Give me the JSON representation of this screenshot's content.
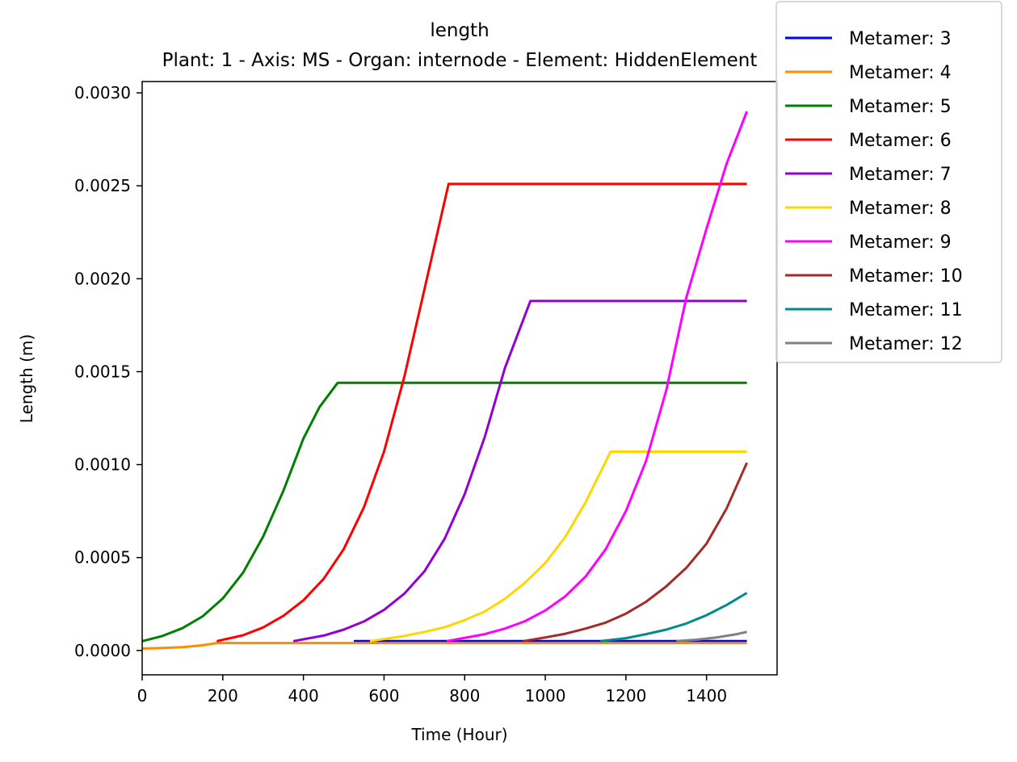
{
  "chart_data": {
    "type": "line",
    "title": "length",
    "subtitle": "Plant: 1 - Axis: MS - Organ: internode - Element: HiddenElement",
    "xlabel": "Time (Hour)",
    "ylabel": "Length (m)",
    "xlim": [
      0,
      1575
    ],
    "ylim": [
      -0.000131,
      0.003061
    ],
    "x_ticks": [
      0,
      200,
      400,
      600,
      800,
      1000,
      1200,
      1400
    ],
    "x_tick_labels": [
      "0",
      "200",
      "400",
      "600",
      "800",
      "1000",
      "1200",
      "1400"
    ],
    "y_ticks": [
      0,
      0.0005,
      0.001,
      0.0015,
      0.002,
      0.0025,
      0.003
    ],
    "y_tick_labels": [
      "0.0000",
      "0.0005",
      "0.0010",
      "0.0015",
      "0.0020",
      "0.0025",
      "0.0030"
    ],
    "grid": false,
    "legend_position": "outside-top-right",
    "series": [
      {
        "name": "Metamer: 3",
        "color": "#0000ff",
        "points": [
          [
            525,
            5e-05
          ],
          [
            1500,
            5e-05
          ]
        ]
      },
      {
        "name": "Metamer: 4",
        "color": "#ff8c00",
        "points": [
          [
            0,
            1e-05
          ],
          [
            50,
            1.3e-05
          ],
          [
            100,
            1.8e-05
          ],
          [
            150,
            2.8e-05
          ],
          [
            185,
            4e-05
          ],
          [
            1500,
            4e-05
          ]
        ]
      },
      {
        "name": "Metamer: 5",
        "color": "#008000",
        "points": [
          [
            0,
            5e-05
          ],
          [
            50,
            7.8e-05
          ],
          [
            100,
            0.00012
          ],
          [
            150,
            0.000184
          ],
          [
            200,
            0.00028
          ],
          [
            250,
            0.000418
          ],
          [
            300,
            0.000612
          ],
          [
            350,
            0.000858
          ],
          [
            400,
            0.00114
          ],
          [
            440,
            0.00131
          ],
          [
            485,
            0.00144
          ],
          [
            1500,
            0.00144
          ]
        ]
      },
      {
        "name": "Metamer: 6",
        "color": "#ff0000",
        "points": [
          [
            185,
            5e-05
          ],
          [
            250,
            8.2e-05
          ],
          [
            300,
            0.000124
          ],
          [
            350,
            0.000186
          ],
          [
            400,
            0.00027
          ],
          [
            450,
            0.000385
          ],
          [
            500,
            0.000545
          ],
          [
            550,
            0.00077
          ],
          [
            600,
            0.00107
          ],
          [
            650,
            0.00147
          ],
          [
            700,
            0.00194
          ],
          [
            760,
            0.00251
          ],
          [
            1500,
            0.00251
          ]
        ]
      },
      {
        "name": "Metamer: 7",
        "color": "#9400d3",
        "points": [
          [
            375,
            5e-05
          ],
          [
            450,
            8e-05
          ],
          [
            500,
            0.000112
          ],
          [
            550,
            0.000156
          ],
          [
            600,
            0.000218
          ],
          [
            650,
            0.000305
          ],
          [
            700,
            0.000425
          ],
          [
            750,
            0.0006
          ],
          [
            800,
            0.00084
          ],
          [
            850,
            0.00115
          ],
          [
            900,
            0.00152
          ],
          [
            963,
            0.00188
          ],
          [
            1500,
            0.00188
          ]
        ]
      },
      {
        "name": "Metamer: 8",
        "color": "#ffd700",
        "points": [
          [
            565,
            5e-05
          ],
          [
            650,
            7.8e-05
          ],
          [
            700,
            0.0001
          ],
          [
            750,
            0.000125
          ],
          [
            800,
            0.000163
          ],
          [
            850,
            0.00021
          ],
          [
            900,
            0.000278
          ],
          [
            950,
            0.000365
          ],
          [
            1000,
            0.00047
          ],
          [
            1050,
            0.000612
          ],
          [
            1100,
            0.000798
          ],
          [
            1162,
            0.00107
          ],
          [
            1500,
            0.00107
          ]
        ]
      },
      {
        "name": "Metamer: 9",
        "color": "#ff00ff",
        "points": [
          [
            755,
            5e-05
          ],
          [
            850,
            8.8e-05
          ],
          [
            900,
            0.000118
          ],
          [
            950,
            0.000158
          ],
          [
            1000,
            0.000215
          ],
          [
            1050,
            0.000292
          ],
          [
            1100,
            0.000398
          ],
          [
            1150,
            0.000545
          ],
          [
            1200,
            0.00075
          ],
          [
            1250,
            0.00102
          ],
          [
            1300,
            0.0014
          ],
          [
            1350,
            0.0019
          ],
          [
            1400,
            0.00227
          ],
          [
            1450,
            0.00262
          ],
          [
            1500,
            0.0029
          ]
        ]
      },
      {
        "name": "Metamer: 10",
        "color": "#a52a2a",
        "points": [
          [
            945,
            5e-05
          ],
          [
            1000,
            7e-05
          ],
          [
            1050,
            9e-05
          ],
          [
            1100,
            0.000118
          ],
          [
            1150,
            0.00015
          ],
          [
            1200,
            0.000198
          ],
          [
            1250,
            0.000262
          ],
          [
            1300,
            0.000345
          ],
          [
            1350,
            0.000445
          ],
          [
            1400,
            0.000575
          ],
          [
            1450,
            0.000765
          ],
          [
            1500,
            0.00101
          ]
        ]
      },
      {
        "name": "Metamer: 11",
        "color": "#008b8b",
        "points": [
          [
            1137,
            5e-05
          ],
          [
            1200,
            6.6e-05
          ],
          [
            1250,
            8.8e-05
          ],
          [
            1300,
            0.000112
          ],
          [
            1350,
            0.000145
          ],
          [
            1400,
            0.00019
          ],
          [
            1450,
            0.000245
          ],
          [
            1500,
            0.00031
          ]
        ]
      },
      {
        "name": "Metamer: 12",
        "color": "#808080",
        "points": [
          [
            1325,
            5e-05
          ],
          [
            1375,
            5.8e-05
          ],
          [
            1425,
            7e-05
          ],
          [
            1475,
            8.8e-05
          ],
          [
            1500,
            0.0001
          ]
        ]
      }
    ]
  }
}
